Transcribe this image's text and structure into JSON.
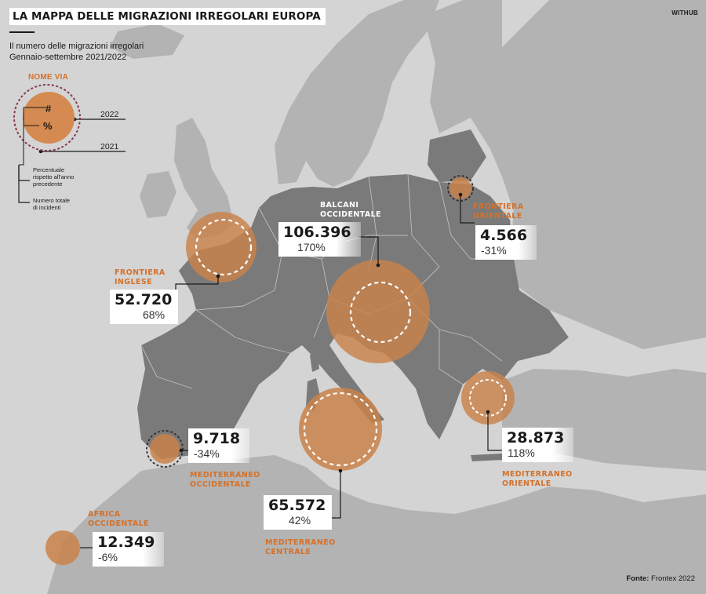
{
  "title": "LA MAPPA DELLE MIGRAZIONI IRREGOLARI EUROPA",
  "brand": "WITHUB",
  "subtitle_line1": "Il numero delle migrazioni irregolari",
  "subtitle_line2": "Gennaio-settembre 2021/2022",
  "legend": {
    "title": "NOME VIA",
    "symbol_count": "#",
    "symbol_percent": "%",
    "year_2022": "2022",
    "year_2021": "2021",
    "note_percent_line1": "Percentuale",
    "note_percent_line2": "rispetto all'anno",
    "note_percent_line3": "precedente",
    "note_total_line1": "Numero totale",
    "note_total_line2": "di incidenti"
  },
  "routes": {
    "balcani": {
      "name_line1": "BALCANI",
      "name_line2": "OCCIDENTALE",
      "count": "106.396",
      "change": "170%"
    },
    "inglese": {
      "name_line1": "FRONTIERA",
      "name_line2": "INGLESE",
      "count": "52.720",
      "change": "68%"
    },
    "orientale": {
      "name_line1": "FRONTIERA",
      "name_line2": "ORIENTALE",
      "count": "4.566",
      "change": "-31%"
    },
    "med_orientale": {
      "name_line1": "MEDITERRANEO",
      "name_line2": "ORIENTALE",
      "count": "28.873",
      "change": "118%"
    },
    "med_occidentale": {
      "name_line1": "MEDITERRANEO",
      "name_line2": "OCCIDENTALE",
      "count": "9.718",
      "change": "-34%"
    },
    "med_centrale": {
      "name_line1": "MEDITERRANEO",
      "name_line2": "CENTRALE",
      "count": "65.572",
      "change": "42%"
    },
    "africa_occidentale": {
      "name_line1": "AFRICA",
      "name_line2": "OCCIDENTALE",
      "count": "12.349",
      "change": "-6%"
    }
  },
  "source_label": "Fonte:",
  "source_value": "Frontex 2022",
  "colors": {
    "sea": "#d4d4d4",
    "land": "#7a7a7a",
    "land_light": "#b3b3b3",
    "circle_fill": "#c9834a",
    "accent": "#d4712a"
  }
}
